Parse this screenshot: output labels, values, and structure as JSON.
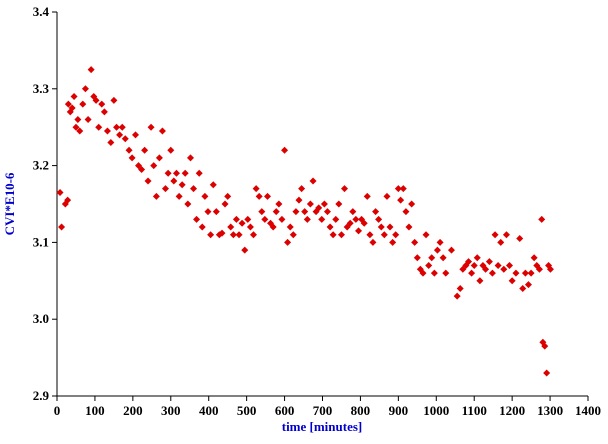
{
  "chart_data": {
    "type": "scatter",
    "title": "",
    "xlabel": "time [minutes]",
    "ylabel": "CVI*E10-6",
    "xlim": [
      0,
      1400
    ],
    "ylim": [
      2.9,
      3.4
    ],
    "x_ticks": [
      0,
      100,
      200,
      300,
      400,
      500,
      600,
      700,
      800,
      900,
      1000,
      1100,
      1200,
      1300,
      1400
    ],
    "x_tick_labels": [
      "0",
      "100",
      "200",
      "300",
      "400",
      "500",
      "600",
      "700",
      "800",
      "900",
      "1000",
      "1100",
      "1200",
      "1300",
      "1400"
    ],
    "y_ticks": [
      2.9,
      3.0,
      3.1,
      3.2,
      3.3,
      3.4
    ],
    "y_tick_labels": [
      "2.9",
      "3.0",
      "3.1",
      "3.2",
      "3.3",
      "3.4"
    ],
    "grid": false,
    "legend": null,
    "marker": {
      "shape": "diamond",
      "color": "#dd0000",
      "size": 7
    },
    "series": [
      {
        "name": "CVI",
        "points": [
          [
            8,
            3.165
          ],
          [
            12,
            3.12
          ],
          [
            22,
            3.15
          ],
          [
            28,
            3.155
          ],
          [
            30,
            3.28
          ],
          [
            35,
            3.27
          ],
          [
            40,
            3.275
          ],
          [
            45,
            3.29
          ],
          [
            50,
            3.25
          ],
          [
            55,
            3.26
          ],
          [
            60,
            3.245
          ],
          [
            68,
            3.28
          ],
          [
            75,
            3.3
          ],
          [
            82,
            3.26
          ],
          [
            90,
            3.325
          ],
          [
            97,
            3.29
          ],
          [
            103,
            3.285
          ],
          [
            110,
            3.25
          ],
          [
            118,
            3.28
          ],
          [
            125,
            3.27
          ],
          [
            133,
            3.245
          ],
          [
            142,
            3.23
          ],
          [
            150,
            3.285
          ],
          [
            157,
            3.25
          ],
          [
            165,
            3.24
          ],
          [
            172,
            3.25
          ],
          [
            180,
            3.235
          ],
          [
            190,
            3.22
          ],
          [
            198,
            3.21
          ],
          [
            207,
            3.24
          ],
          [
            215,
            3.2
          ],
          [
            223,
            3.195
          ],
          [
            231,
            3.22
          ],
          [
            240,
            3.18
          ],
          [
            248,
            3.25
          ],
          [
            255,
            3.2
          ],
          [
            262,
            3.16
          ],
          [
            270,
            3.21
          ],
          [
            278,
            3.245
          ],
          [
            286,
            3.17
          ],
          [
            293,
            3.19
          ],
          [
            300,
            3.22
          ],
          [
            308,
            3.18
          ],
          [
            315,
            3.19
          ],
          [
            322,
            3.16
          ],
          [
            330,
            3.175
          ],
          [
            338,
            3.19
          ],
          [
            345,
            3.15
          ],
          [
            352,
            3.21
          ],
          [
            360,
            3.17
          ],
          [
            368,
            3.13
          ],
          [
            375,
            3.19
          ],
          [
            383,
            3.12
          ],
          [
            390,
            3.16
          ],
          [
            398,
            3.14
          ],
          [
            405,
            3.11
          ],
          [
            412,
            3.175
          ],
          [
            420,
            3.14
          ],
          [
            428,
            3.11
          ],
          [
            435,
            3.112
          ],
          [
            443,
            3.15
          ],
          [
            450,
            3.16
          ],
          [
            458,
            3.12
          ],
          [
            465,
            3.11
          ],
          [
            473,
            3.13
          ],
          [
            480,
            3.11
          ],
          [
            488,
            3.125
          ],
          [
            495,
            3.09
          ],
          [
            503,
            3.13
          ],
          [
            510,
            3.12
          ],
          [
            518,
            3.11
          ],
          [
            525,
            3.17
          ],
          [
            533,
            3.16
          ],
          [
            540,
            3.14
          ],
          [
            548,
            3.13
          ],
          [
            555,
            3.16
          ],
          [
            563,
            3.125
          ],
          [
            570,
            3.12
          ],
          [
            578,
            3.14
          ],
          [
            585,
            3.15
          ],
          [
            593,
            3.13
          ],
          [
            600,
            3.22
          ],
          [
            608,
            3.1
          ],
          [
            615,
            3.12
          ],
          [
            623,
            3.11
          ],
          [
            630,
            3.14
          ],
          [
            638,
            3.155
          ],
          [
            645,
            3.17
          ],
          [
            653,
            3.14
          ],
          [
            660,
            3.13
          ],
          [
            668,
            3.15
          ],
          [
            675,
            3.18
          ],
          [
            683,
            3.14
          ],
          [
            690,
            3.145
          ],
          [
            698,
            3.13
          ],
          [
            705,
            3.15
          ],
          [
            713,
            3.14
          ],
          [
            720,
            3.12
          ],
          [
            728,
            3.11
          ],
          [
            735,
            3.13
          ],
          [
            743,
            3.15
          ],
          [
            750,
            3.11
          ],
          [
            758,
            3.17
          ],
          [
            765,
            3.12
          ],
          [
            773,
            3.125
          ],
          [
            780,
            3.14
          ],
          [
            788,
            3.13
          ],
          [
            795,
            3.115
          ],
          [
            803,
            3.13
          ],
          [
            810,
            3.125
          ],
          [
            818,
            3.16
          ],
          [
            825,
            3.11
          ],
          [
            833,
            3.1
          ],
          [
            840,
            3.14
          ],
          [
            848,
            3.13
          ],
          [
            855,
            3.12
          ],
          [
            863,
            3.11
          ],
          [
            870,
            3.16
          ],
          [
            878,
            3.12
          ],
          [
            885,
            3.1
          ],
          [
            893,
            3.11
          ],
          [
            900,
            3.17
          ],
          [
            906,
            3.155
          ],
          [
            913,
            3.17
          ],
          [
            920,
            3.14
          ],
          [
            928,
            3.12
          ],
          [
            935,
            3.15
          ],
          [
            943,
            3.1
          ],
          [
            950,
            3.08
          ],
          [
            958,
            3.065
          ],
          [
            965,
            3.06
          ],
          [
            973,
            3.11
          ],
          [
            980,
            3.07
          ],
          [
            988,
            3.08
          ],
          [
            995,
            3.06
          ],
          [
            1003,
            3.09
          ],
          [
            1010,
            3.1
          ],
          [
            1018,
            3.08
          ],
          [
            1025,
            3.06
          ],
          [
            1040,
            3.09
          ],
          [
            1055,
            3.03
          ],
          [
            1063,
            3.04
          ],
          [
            1070,
            3.065
          ],
          [
            1078,
            3.07
          ],
          [
            1085,
            3.075
          ],
          [
            1093,
            3.06
          ],
          [
            1100,
            3.07
          ],
          [
            1108,
            3.08
          ],
          [
            1115,
            3.05
          ],
          [
            1123,
            3.07
          ],
          [
            1130,
            3.065
          ],
          [
            1140,
            3.075
          ],
          [
            1148,
            3.06
          ],
          [
            1155,
            3.11
          ],
          [
            1163,
            3.07
          ],
          [
            1170,
            3.1
          ],
          [
            1178,
            3.065
          ],
          [
            1185,
            3.11
          ],
          [
            1193,
            3.07
          ],
          [
            1200,
            3.05
          ],
          [
            1210,
            3.06
          ],
          [
            1220,
            3.105
          ],
          [
            1228,
            3.04
          ],
          [
            1235,
            3.06
          ],
          [
            1243,
            3.045
          ],
          [
            1250,
            3.06
          ],
          [
            1258,
            3.08
          ],
          [
            1265,
            3.07
          ],
          [
            1272,
            3.065
          ],
          [
            1278,
            3.13
          ],
          [
            1281,
            2.97
          ],
          [
            1286,
            2.965
          ],
          [
            1291,
            2.93
          ],
          [
            1296,
            3.07
          ],
          [
            1301,
            3.065
          ]
        ]
      }
    ]
  },
  "style": {
    "background": "#ffffff",
    "axis_color": "#000000",
    "tick_label_color": "#000000",
    "title_color": "#0000cc"
  }
}
